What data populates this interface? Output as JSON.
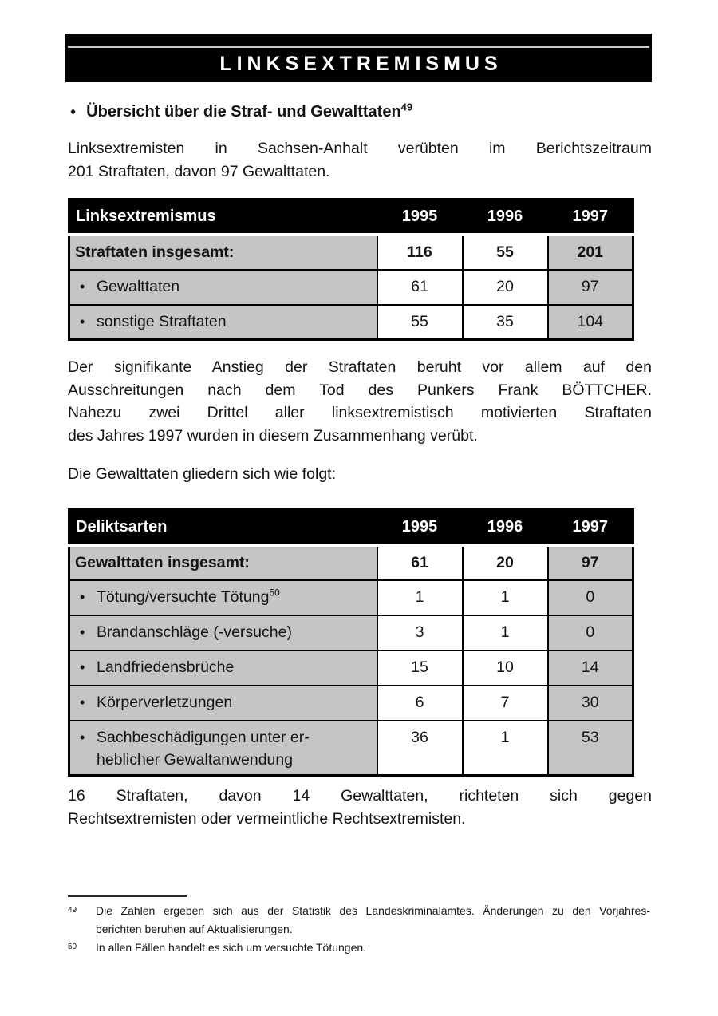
{
  "banner": {
    "title": "LINKSEXTREMISMUS"
  },
  "glyphs": {
    "diamond": "♦",
    "bullet": "•"
  },
  "heading": {
    "text": "Übersicht über die Straf- und Gewalttaten",
    "footnote_ref": "49"
  },
  "paragraphs": {
    "intro_lines": [
      "Linksextremisten in Sachsen-Anhalt verübten im Berichtszeitraum",
      "201 Straftaten, davon 97 Gewalttaten."
    ],
    "anstieg_lines": [
      "Der signifikante Anstieg der Straftaten beruht vor allem auf den",
      "Ausschreitungen nach dem Tod des Punkers Frank BÖTTCHER.",
      "Nahezu zwei Drittel aller linksextremistisch motivierten Straftaten",
      "des Jahres 1997 wurden in diesem Zusammenhang verübt."
    ],
    "gliederung": "Die Gewalttaten gliedern sich wie folgt:",
    "richtung_lines": [
      "16 Straftaten, davon 14 Gewalttaten, richteten sich gegen",
      "Rechtsextremisten oder vermeintliche Rechtsextremisten."
    ]
  },
  "tables": [
    {
      "name": "straftaten",
      "columns": [
        "Linksextremismus",
        "1995",
        "1996",
        "1997"
      ],
      "rows": [
        {
          "style": "total",
          "label_lines": [
            "Straftaten insgesamt:"
          ],
          "values": [
            "116",
            "55",
            "201"
          ]
        },
        {
          "style": "bullet",
          "label_lines": [
            "Gewalttaten"
          ],
          "values": [
            "61",
            "20",
            "97"
          ]
        },
        {
          "style": "bullet",
          "label_lines": [
            "sonstige Straftaten"
          ],
          "values": [
            "55",
            "35",
            "104"
          ]
        }
      ]
    },
    {
      "name": "deliktsarten",
      "columns": [
        "Deliktsarten",
        "1995",
        "1996",
        "1997"
      ],
      "rows": [
        {
          "style": "total",
          "label_lines": [
            "Gewalttaten insgesamt:"
          ],
          "values": [
            "61",
            "20",
            "97"
          ]
        },
        {
          "style": "bullet",
          "label_lines": [
            "Tötung/versuchte Tötung"
          ],
          "label_sup": "50",
          "values": [
            "1",
            "1",
            "0"
          ]
        },
        {
          "style": "bullet",
          "label_lines": [
            "Brandanschläge (-versuche)"
          ],
          "values": [
            "3",
            "1",
            "0"
          ]
        },
        {
          "style": "bullet",
          "label_lines": [
            "Landfriedensbrüche"
          ],
          "values": [
            "15",
            "10",
            "14"
          ]
        },
        {
          "style": "bullet",
          "label_lines": [
            "Körperverletzungen"
          ],
          "values": [
            "6",
            "7",
            "30"
          ]
        },
        {
          "style": "bullet",
          "label_lines": [
            "Sachbeschädigungen unter er-",
            "heblicher Gewaltanwendung"
          ],
          "values": [
            "36",
            "1",
            "53"
          ]
        }
      ]
    }
  ],
  "footnotes": [
    {
      "marker": "49",
      "lines": [
        "Die Zahlen ergeben sich aus der Statistik des Landeskriminalamtes. Änderungen zu den Vorjahres-",
        "berichten beruhen auf Aktualisierungen."
      ]
    },
    {
      "marker": "50",
      "lines": [
        "In allen Fällen handelt es sich um versuchte Tötungen."
      ]
    }
  ],
  "colors": {
    "header_bg": "#000000",
    "header_text": "#ffffff",
    "cell_gray": "#c5c5c5",
    "text": "#141414"
  }
}
